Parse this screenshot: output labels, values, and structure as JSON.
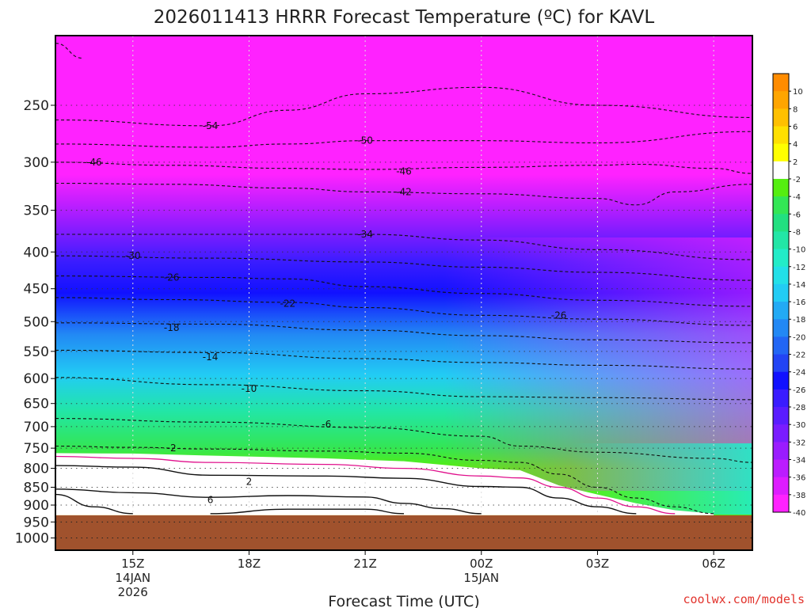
{
  "chart_data": {
    "type": "heatmap",
    "title": "2026011413 HRRR Forecast Temperature (ºC) for KAVL",
    "xlabel": "Forecast Time (UTC)",
    "ylabel": "",
    "x_ticks": [
      {
        "label": "15Z",
        "sub": [
          "14JAN",
          "2026"
        ],
        "hour": 15
      },
      {
        "label": "18Z",
        "sub": [],
        "hour": 18
      },
      {
        "label": "21Z",
        "sub": [],
        "hour": 21
      },
      {
        "label": "00Z",
        "sub": [
          "15JAN"
        ],
        "hour": 24
      },
      {
        "label": "03Z",
        "sub": [],
        "hour": 27
      },
      {
        "label": "06Z",
        "sub": [],
        "hour": 30
      }
    ],
    "x_range_hours": [
      13,
      31
    ],
    "y_ticks": [
      250,
      300,
      350,
      400,
      450,
      500,
      550,
      600,
      650,
      700,
      750,
      800,
      850,
      900,
      950,
      1000
    ],
    "y_range_hpa": [
      200,
      1040
    ],
    "y_scale": "log",
    "surface_pressure_hpa": 930,
    "colorbar": {
      "labels": [
        "10",
        "8",
        "6",
        "4",
        "2",
        "-2",
        "-4",
        "-6",
        "-8",
        "-10",
        "-12",
        "-14",
        "-16",
        "-18",
        "-20",
        "-22",
        "-24",
        "-26",
        "-28",
        "-30",
        "-32",
        "-34",
        "-36",
        "-38",
        "-40"
      ],
      "colors": [
        "#ff8c00",
        "#ffa500",
        "#ffc000",
        "#ffe000",
        "#ffff00",
        "#ffffff",
        "#55ee11",
        "#33e655",
        "#22e080",
        "#22e6a6",
        "#22ecc8",
        "#22e0e8",
        "#22ccf4",
        "#22aaf4",
        "#2288f4",
        "#2266f4",
        "#2244f4",
        "#1111ff",
        "#3a1cff",
        "#5a1cff",
        "#7a1cff",
        "#9a1cff",
        "#bb1cff",
        "#dd1cff",
        "#ff22ff"
      ]
    },
    "contours": [
      {
        "label": "-54",
        "pts": [
          [
            13,
            262
          ],
          [
            17,
            267
          ],
          [
            19,
            254
          ],
          [
            21,
            241
          ],
          [
            24,
            236
          ],
          [
            27,
            250
          ],
          [
            31,
            260
          ]
        ]
      },
      {
        "label": "-50",
        "pts": [
          [
            13,
            283
          ],
          [
            17,
            286
          ],
          [
            19,
            283
          ],
          [
            21,
            280
          ],
          [
            24,
            280
          ],
          [
            27,
            282
          ],
          [
            31,
            272
          ]
        ]
      },
      {
        "label": "-46",
        "pts": [
          [
            13,
            300
          ],
          [
            16,
            303
          ],
          [
            19,
            306
          ],
          [
            21,
            307
          ],
          [
            24,
            305
          ],
          [
            27,
            303
          ],
          [
            28,
            302
          ],
          [
            30,
            306
          ],
          [
            31,
            311
          ]
        ]
      },
      {
        "label": "-42",
        "pts": [
          [
            13,
            321
          ],
          [
            16,
            322
          ],
          [
            19,
            326
          ],
          [
            21,
            330
          ],
          [
            24,
            332
          ],
          [
            27,
            337
          ],
          [
            28,
            344
          ],
          [
            29,
            330
          ],
          [
            31,
            322
          ]
        ]
      },
      {
        "label": "-34",
        "pts": [
          [
            13,
            378
          ],
          [
            17,
            378
          ],
          [
            21,
            378
          ],
          [
            24,
            385
          ],
          [
            27,
            397
          ],
          [
            31,
            410
          ]
        ]
      },
      {
        "label": "-30",
        "pts": [
          [
            13,
            405
          ],
          [
            17,
            408
          ],
          [
            21,
            413
          ],
          [
            24,
            420
          ],
          [
            27,
            427
          ],
          [
            31,
            438
          ]
        ]
      },
      {
        "label": "-26",
        "pts": [
          [
            13,
            432
          ],
          [
            17,
            434
          ],
          [
            19,
            436
          ],
          [
            21,
            447
          ],
          [
            24,
            457
          ],
          [
            27,
            467
          ],
          [
            31,
            476
          ]
        ]
      },
      {
        "label": "-22",
        "pts": [
          [
            13,
            463
          ],
          [
            16,
            466
          ],
          [
            19,
            470
          ],
          [
            21,
            478
          ],
          [
            24,
            490
          ],
          [
            27,
            496
          ],
          [
            31,
            506
          ]
        ]
      },
      {
        "label": "-18",
        "pts": [
          [
            13,
            502
          ],
          [
            17,
            504
          ],
          [
            21,
            514
          ],
          [
            24,
            523
          ],
          [
            27,
            530
          ],
          [
            31,
            535
          ]
        ]
      },
      {
        "label": "-14",
        "pts": [
          [
            13,
            548
          ],
          [
            17,
            552
          ],
          [
            21,
            563
          ],
          [
            24,
            570
          ],
          [
            27,
            575
          ],
          [
            31,
            582
          ]
        ]
      },
      {
        "label": "-10",
        "pts": [
          [
            13,
            598
          ],
          [
            17,
            612
          ],
          [
            21,
            624
          ],
          [
            24,
            636
          ],
          [
            27,
            638
          ],
          [
            31,
            642
          ]
        ]
      },
      {
        "label": "-6",
        "pts": [
          [
            13,
            682
          ],
          [
            17,
            690
          ],
          [
            21,
            702
          ],
          [
            24,
            722
          ],
          [
            25,
            745
          ],
          [
            27,
            760
          ],
          [
            30,
            775
          ],
          [
            31,
            785
          ]
        ]
      }
    ],
    "contour_labels": [
      {
        "text": "-54",
        "hour": 17,
        "hpa": 267
      },
      {
        "text": "-50",
        "hour": 21,
        "hpa": 280
      },
      {
        "text": "-46",
        "hour": 14,
        "hpa": 300
      },
      {
        "text": "-46",
        "hour": 22,
        "hpa": 309
      },
      {
        "text": "-42",
        "hour": 22,
        "hpa": 330
      },
      {
        "text": "-34",
        "hour": 21,
        "hpa": 378
      },
      {
        "text": "-30",
        "hour": 15,
        "hpa": 405
      },
      {
        "text": "-26",
        "hour": 16,
        "hpa": 434
      },
      {
        "text": "-26",
        "hour": 26,
        "hpa": 490
      },
      {
        "text": "-22",
        "hour": 19,
        "hpa": 472
      },
      {
        "text": "-18",
        "hour": 16,
        "hpa": 510
      },
      {
        "text": "-14",
        "hour": 17,
        "hpa": 560
      },
      {
        "text": "-10",
        "hour": 18,
        "hpa": 620
      },
      {
        "text": "-6",
        "hour": 20,
        "hpa": 695
      },
      {
        "text": "-2",
        "hour": 16,
        "hpa": 750
      },
      {
        "text": "2",
        "hour": 18,
        "hpa": 835
      },
      {
        "text": "6",
        "hour": 17,
        "hpa": 885
      }
    ]
  },
  "credit": "coolwx.com/models"
}
